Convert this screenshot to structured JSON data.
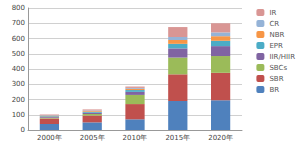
{
  "chart_data": {
    "type": "bar",
    "stacked": true,
    "grid": true,
    "legend": "right",
    "categories": [
      "2000年",
      "2005年",
      "2010年",
      "2015年",
      "2020年"
    ],
    "series": [
      {
        "name": "BR",
        "color": "#4f81bd",
        "values": [
          40,
          50,
          70,
          190,
          195
        ]
      },
      {
        "name": "SBR",
        "color": "#c0504d",
        "values": [
          35,
          45,
          100,
          175,
          180
        ]
      },
      {
        "name": "SBCs",
        "color": "#9bbb59",
        "values": [
          5,
          10,
          60,
          110,
          110
        ]
      },
      {
        "name": "IIR/HIIR",
        "color": "#8064a2",
        "values": [
          5,
          8,
          20,
          60,
          65
        ]
      },
      {
        "name": "EPR",
        "color": "#4bacc6",
        "values": [
          5,
          6,
          12,
          30,
          35
        ]
      },
      {
        "name": "NBR",
        "color": "#f79646",
        "values": [
          3,
          5,
          8,
          25,
          30
        ]
      },
      {
        "name": "CR",
        "color": "#95b3d7",
        "values": [
          3,
          4,
          6,
          20,
          25
        ]
      },
      {
        "name": "IR",
        "color": "#d99694",
        "values": [
          5,
          7,
          9,
          65,
          60
        ]
      }
    ],
    "ylim": [
      0,
      800
    ],
    "yticks": [
      0,
      100,
      200,
      300,
      400,
      500,
      600,
      700,
      800
    ]
  }
}
